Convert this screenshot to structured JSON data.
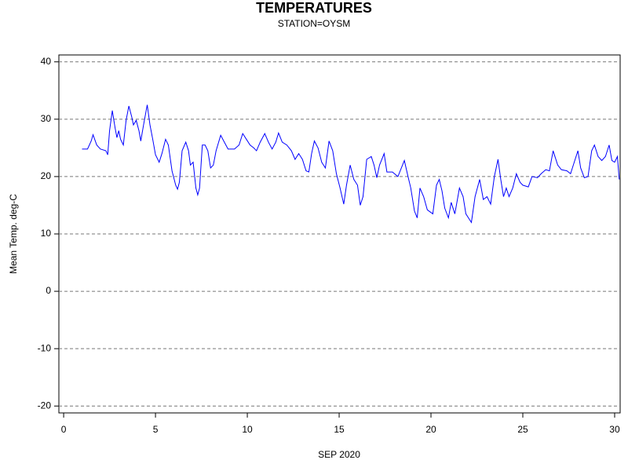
{
  "chart_data": {
    "type": "line",
    "title": "TEMPERATURES",
    "subtitle": "STATION=OYSM",
    "x_label": "SEP 2020",
    "y_label": "Mean Temp. deg-C",
    "grid": true,
    "xlim": [
      -0.26,
      30.3
    ],
    "ylim": [
      -21.2,
      41.2
    ],
    "xticks": [
      0,
      5,
      10,
      15,
      20,
      25,
      30
    ],
    "yticks": [
      -20,
      -10,
      0,
      10,
      20,
      30,
      40
    ],
    "series": [
      {
        "name": "Mean Temp",
        "color": "#0000ff",
        "x": [
          1.0,
          1.3,
          1.5,
          1.6,
          1.8,
          2.0,
          2.3,
          2.4,
          2.5,
          2.65,
          2.8,
          2.9,
          3.0,
          3.1,
          3.25,
          3.4,
          3.55,
          3.7,
          3.8,
          3.95,
          4.1,
          4.2,
          4.35,
          4.55,
          4.7,
          4.85,
          5.0,
          5.2,
          5.35,
          5.55,
          5.7,
          5.9,
          6.1,
          6.2,
          6.3,
          6.45,
          6.65,
          6.8,
          6.9,
          7.05,
          7.2,
          7.3,
          7.4,
          7.55,
          7.7,
          7.85,
          8.0,
          8.15,
          8.3,
          8.55,
          8.75,
          8.95,
          9.3,
          9.55,
          9.75,
          9.95,
          10.15,
          10.35,
          10.5,
          10.7,
          10.95,
          11.15,
          11.35,
          11.55,
          11.7,
          11.9,
          12.15,
          12.4,
          12.6,
          12.8,
          13.0,
          13.2,
          13.35,
          13.5,
          13.65,
          13.85,
          14.05,
          14.25,
          14.45,
          14.65,
          14.85,
          15.05,
          15.25,
          15.4,
          15.6,
          15.8,
          16.0,
          16.15,
          16.3,
          16.5,
          16.75,
          16.9,
          17.05,
          17.2,
          17.45,
          17.6,
          17.9,
          18.2,
          18.55,
          18.75,
          18.9,
          19.1,
          19.25,
          19.4,
          19.6,
          19.8,
          20.1,
          20.3,
          20.45,
          20.6,
          20.75,
          20.95,
          21.1,
          21.3,
          21.55,
          21.75,
          21.9,
          22.2,
          22.4,
          22.65,
          22.85,
          23.05,
          23.25,
          23.45,
          23.65,
          23.8,
          23.95,
          24.1,
          24.25,
          24.45,
          24.65,
          24.85,
          25.0,
          25.3,
          25.5,
          25.8,
          26.0,
          26.25,
          26.45,
          26.65,
          26.9,
          27.1,
          27.4,
          27.6,
          27.8,
          28.0,
          28.15,
          28.35,
          28.55,
          28.75,
          28.9,
          29.1,
          29.3,
          29.5,
          29.7,
          29.85,
          30.0,
          30.15,
          30.25
        ],
        "values": [
          24.8,
          24.8,
          26.2,
          27.3,
          25.5,
          24.8,
          24.5,
          23.8,
          28,
          31.5,
          28.5,
          26.8,
          28,
          26.5,
          25.5,
          29.8,
          32.3,
          30.5,
          29,
          29.8,
          28,
          26.2,
          29,
          32.5,
          29,
          26.5,
          23.8,
          22.5,
          24,
          26.5,
          25.5,
          21,
          18.5,
          17.8,
          19,
          24.5,
          26,
          24.5,
          22,
          22.5,
          18,
          16.8,
          18,
          25.5,
          25.5,
          24.5,
          21.5,
          22,
          24.5,
          27.2,
          26,
          24.8,
          24.8,
          25.5,
          27.5,
          26.5,
          25.5,
          25,
          24.5,
          26,
          27.5,
          26,
          24.8,
          26,
          27.6,
          26,
          25.5,
          24.5,
          23,
          24,
          23,
          21,
          20.8,
          24,
          26.2,
          25,
          22.5,
          21.5,
          26.2,
          24.5,
          20.5,
          18,
          15.2,
          18.5,
          22,
          19.5,
          18.5,
          15,
          16.5,
          23,
          23.5,
          22,
          19.8,
          22,
          24,
          20.8,
          20.8,
          20,
          22.8,
          20,
          18,
          14,
          12.8,
          18,
          16.5,
          14.2,
          13.5,
          18.5,
          19.5,
          17.5,
          14.5,
          12.8,
          15.5,
          13.5,
          18,
          16.5,
          13.5,
          12,
          16.5,
          19.5,
          16,
          16.5,
          15.2,
          20,
          23,
          19.5,
          16.5,
          18,
          16.5,
          18,
          20.5,
          19,
          18.5,
          18.2,
          20,
          19.8,
          20.5,
          21.2,
          21,
          24.5,
          22,
          21.2,
          21,
          20.5,
          22.5,
          24.5,
          21.5,
          19.8,
          20,
          24.5,
          25.5,
          23.5,
          22.8,
          23.5,
          25.5,
          22.8,
          22.5,
          23.5,
          19.5
        ]
      }
    ]
  }
}
